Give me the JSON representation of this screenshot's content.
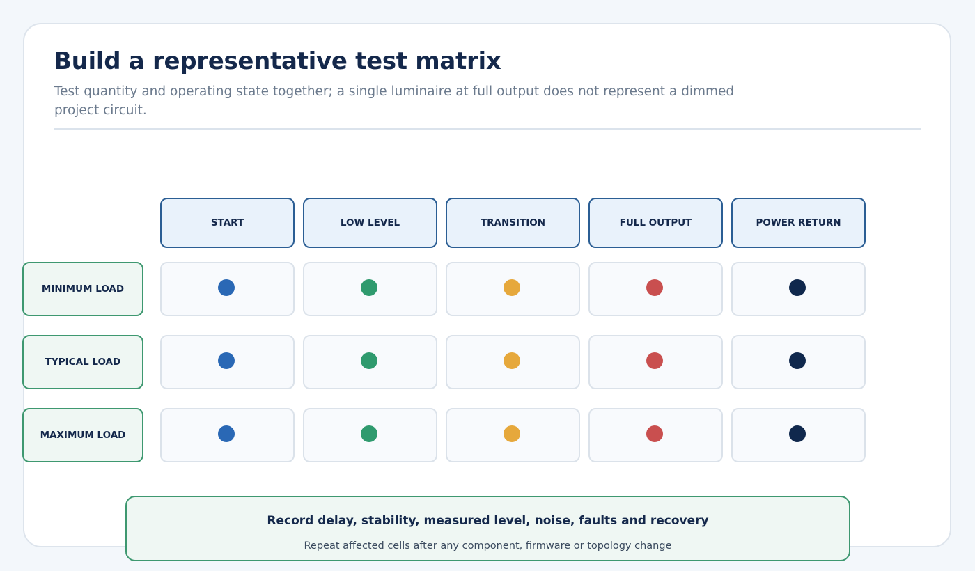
{
  "header": {
    "title": "Build a representative test matrix",
    "subtitle": "Test quantity and operating state together; a single luminaire at full output does not represent a dimmed project circuit."
  },
  "matrix": {
    "columns": [
      "START",
      "LOW LEVEL",
      "TRANSITION",
      "FULL OUTPUT",
      "POWER RETURN"
    ],
    "rows": [
      "MINIMUM LOAD",
      "TYPICAL LOAD",
      "MAXIMUM LOAD"
    ],
    "column_colors": [
      "#2a68b5",
      "#2f9a6e",
      "#e6a83c",
      "#c94f4f",
      "#10284d"
    ]
  },
  "footer": {
    "title": "Record delay, stability, measured level, noise, faults and recovery",
    "note": "Repeat affected cells after any component, firmware or topology change"
  }
}
